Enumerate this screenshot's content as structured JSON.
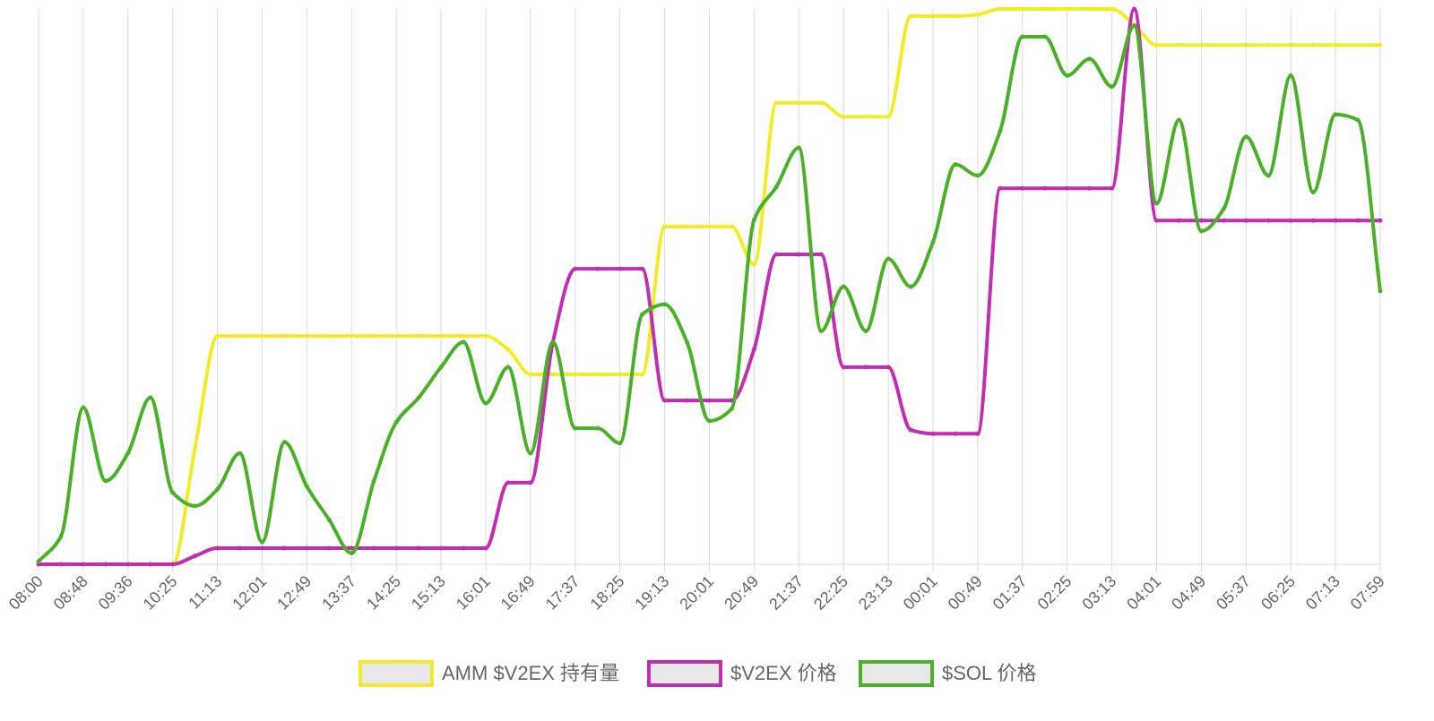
{
  "chart_data": {
    "type": "line",
    "categories": [
      "08:00",
      null,
      "08:48",
      null,
      "09:36",
      null,
      "10:25",
      null,
      "11:13",
      null,
      "12:01",
      null,
      "12:49",
      null,
      "13:37",
      null,
      "14:25",
      null,
      "15:13",
      null,
      "16:01",
      null,
      "16:49",
      null,
      "17:37",
      null,
      "18:25",
      null,
      "19:13",
      null,
      "20:01",
      null,
      "20:49",
      null,
      "21:37",
      null,
      "22:25",
      null,
      "23:13",
      null,
      "00:01",
      null,
      "00:49",
      null,
      "01:37",
      null,
      "02:25",
      null,
      "03:13",
      null,
      "04:01",
      null,
      "04:49",
      null,
      "05:37",
      null,
      "06:25",
      null,
      "07:13",
      null,
      "07:59"
    ],
    "ylim": [
      0,
      100
    ],
    "series": [
      {
        "name": "AMM $V2EX 持有量",
        "color": "#f0ec2a",
        "values": [
          0,
          0,
          0,
          0,
          0,
          0,
          0,
          21,
          41.1,
          41.1,
          41.1,
          41.1,
          41.1,
          41.1,
          41.1,
          41.1,
          41.1,
          41.1,
          41.1,
          41.1,
          41.1,
          38.7,
          34.2,
          34.2,
          34.2,
          34.2,
          34.2,
          34.2,
          60.8,
          60.8,
          60.8,
          60.8,
          54,
          83.1,
          83.1,
          83.1,
          80.6,
          80.6,
          80.6,
          98.7,
          98.7,
          98.7,
          99,
          100,
          100,
          100,
          100,
          100,
          100,
          97.1,
          93.5,
          93.5,
          93.5,
          93.5,
          93.5,
          93.5,
          93.5,
          93.5,
          93.5,
          93.5,
          93.5
        ]
      },
      {
        "name": "$V2EX 价格",
        "color": "#c02fb0",
        "values": [
          0,
          0,
          0,
          0,
          0,
          0,
          0,
          1.5,
          2.9,
          2.9,
          2.9,
          2.9,
          2.9,
          2.9,
          2.9,
          2.9,
          2.9,
          2.9,
          2.9,
          2.9,
          2.9,
          14.7,
          14.7,
          40,
          53.2,
          53.2,
          53.2,
          53.2,
          29.5,
          29.5,
          29.5,
          29.5,
          38.7,
          55.8,
          55.8,
          55.8,
          35.5,
          35.5,
          35.5,
          24.2,
          23.5,
          23.5,
          23.5,
          67.7,
          67.7,
          67.7,
          67.7,
          67.7,
          67.7,
          100,
          61.9,
          61.9,
          61.9,
          61.9,
          61.9,
          61.9,
          61.9,
          61.9,
          61.9,
          61.9,
          61.9
        ]
      },
      {
        "name": "$SOL 价格",
        "color": "#4caf2a",
        "values": [
          0.5,
          5,
          28.2,
          15,
          20,
          30,
          12.9,
          10.5,
          13.5,
          20,
          4,
          22,
          14,
          8,
          2,
          15,
          25.6,
          30,
          35.5,
          40,
          29,
          35.5,
          20,
          40,
          24.5,
          24.5,
          21.8,
          45,
          46.8,
          40,
          25.8,
          28,
          62,
          68,
          75,
          42,
          50,
          42,
          55,
          50,
          58,
          72,
          70,
          78,
          95,
          95,
          88,
          91,
          86,
          97,
          65,
          80,
          60,
          64,
          77,
          70,
          88,
          67,
          81,
          80,
          49.2
        ]
      }
    ],
    "grid": "vertical",
    "legend": "bottom"
  }
}
